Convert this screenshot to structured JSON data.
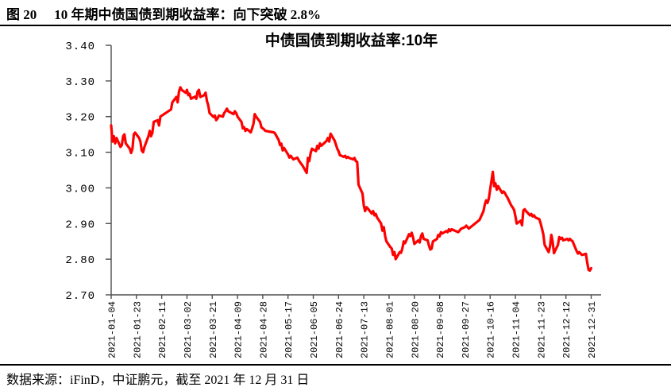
{
  "header": {
    "figure_label": "图 20",
    "figure_title": "10 年期中债国债到期收益率：向下突破 2.8%"
  },
  "footer": {
    "source_text": "数据来源：iFinD，中证鹏元，截至 2021 年 12 月 31 日"
  },
  "chart_data": {
    "type": "line",
    "title": "中债国债到期收益率:10年",
    "xlabel": "",
    "ylabel": "",
    "ylim": [
      2.7,
      3.4
    ],
    "y_tick_step": 0.1,
    "y_tick_labels": [
      "3.40",
      "3.30",
      "3.20",
      "3.10",
      "3.00",
      "2.90",
      "2.80",
      "2.70"
    ],
    "x_tick_labels": [
      "2021-01-04",
      "2021-01-23",
      "2021-02-11",
      "2021-03-02",
      "2021-03-21",
      "2021-04-09",
      "2021-04-28",
      "2021-05-17",
      "2021-06-05",
      "2021-06-24",
      "2021-07-13",
      "2021-08-01",
      "2021-08-20",
      "2021-09-08",
      "2021-09-27",
      "2021-10-16",
      "2021-11-04",
      "2021-11-23",
      "2021-12-12",
      "2021-12-31"
    ],
    "grid": false,
    "legend_position": "none",
    "line_color": "#FF0000",
    "axis_color": "#4d4d4d",
    "series": [
      {
        "name": "中债国债到期收益率:10年",
        "points": [
          [
            "2021-01-04",
            3.175
          ],
          [
            "2021-01-05",
            3.13
          ],
          [
            "2021-01-06",
            3.145
          ],
          [
            "2021-01-07",
            3.125
          ],
          [
            "2021-01-08",
            3.14
          ],
          [
            "2021-01-11",
            3.115
          ],
          [
            "2021-01-12",
            3.12
          ],
          [
            "2021-01-13",
            3.145
          ],
          [
            "2021-01-14",
            3.15
          ],
          [
            "2021-01-15",
            3.125
          ],
          [
            "2021-01-18",
            3.11
          ],
          [
            "2021-01-19",
            3.098
          ],
          [
            "2021-01-20",
            3.11
          ],
          [
            "2021-01-21",
            3.15
          ],
          [
            "2021-01-22",
            3.155
          ],
          [
            "2021-01-25",
            3.14
          ],
          [
            "2021-01-26",
            3.13
          ],
          [
            "2021-01-27",
            3.105
          ],
          [
            "2021-01-28",
            3.1
          ],
          [
            "2021-01-29",
            3.115
          ],
          [
            "2021-02-01",
            3.145
          ],
          [
            "2021-02-02",
            3.16
          ],
          [
            "2021-02-03",
            3.145
          ],
          [
            "2021-02-04",
            3.155
          ],
          [
            "2021-02-05",
            3.185
          ],
          [
            "2021-02-08",
            3.19
          ],
          [
            "2021-02-09",
            3.175
          ],
          [
            "2021-02-10",
            3.2
          ],
          [
            "2021-02-18",
            3.22
          ],
          [
            "2021-02-19",
            3.24
          ],
          [
            "2021-02-22",
            3.255
          ],
          [
            "2021-02-23",
            3.24
          ],
          [
            "2021-02-24",
            3.27
          ],
          [
            "2021-02-25",
            3.282
          ],
          [
            "2021-02-26",
            3.275
          ],
          [
            "2021-03-01",
            3.267
          ],
          [
            "2021-03-02",
            3.275
          ],
          [
            "2021-03-03",
            3.26
          ],
          [
            "2021-03-04",
            3.264
          ],
          [
            "2021-03-05",
            3.25
          ],
          [
            "2021-03-08",
            3.256
          ],
          [
            "2021-03-09",
            3.25
          ],
          [
            "2021-03-10",
            3.27
          ],
          [
            "2021-03-11",
            3.275
          ],
          [
            "2021-03-12",
            3.255
          ],
          [
            "2021-03-15",
            3.26
          ],
          [
            "2021-03-16",
            3.267
          ],
          [
            "2021-03-17",
            3.244
          ],
          [
            "2021-03-18",
            3.232
          ],
          [
            "2021-03-19",
            3.21
          ],
          [
            "2021-03-22",
            3.199
          ],
          [
            "2021-03-23",
            3.203
          ],
          [
            "2021-03-24",
            3.19
          ],
          [
            "2021-03-25",
            3.195
          ],
          [
            "2021-03-26",
            3.203
          ],
          [
            "2021-03-29",
            3.2
          ],
          [
            "2021-03-30",
            3.21
          ],
          [
            "2021-03-31",
            3.215
          ],
          [
            "2021-04-01",
            3.222
          ],
          [
            "2021-04-02",
            3.215
          ],
          [
            "2021-04-06",
            3.207
          ],
          [
            "2021-04-07",
            3.215
          ],
          [
            "2021-04-08",
            3.21
          ],
          [
            "2021-04-09",
            3.2
          ],
          [
            "2021-04-12",
            3.185
          ],
          [
            "2021-04-13",
            3.167
          ],
          [
            "2021-04-14",
            3.17
          ],
          [
            "2021-04-15",
            3.16
          ],
          [
            "2021-04-16",
            3.165
          ],
          [
            "2021-04-19",
            3.156
          ],
          [
            "2021-04-20",
            3.167
          ],
          [
            "2021-04-21",
            3.18
          ],
          [
            "2021-04-22",
            3.207
          ],
          [
            "2021-04-23",
            3.2
          ],
          [
            "2021-04-26",
            3.185
          ],
          [
            "2021-04-27",
            3.17
          ],
          [
            "2021-04-28",
            3.167
          ],
          [
            "2021-04-29",
            3.164
          ],
          [
            "2021-04-30",
            3.16
          ],
          [
            "2021-05-06",
            3.156
          ],
          [
            "2021-05-07",
            3.154
          ],
          [
            "2021-05-10",
            3.134
          ],
          [
            "2021-05-11",
            3.12
          ],
          [
            "2021-05-12",
            3.124
          ],
          [
            "2021-05-13",
            3.105
          ],
          [
            "2021-05-14",
            3.112
          ],
          [
            "2021-05-17",
            3.094
          ],
          [
            "2021-05-18",
            3.085
          ],
          [
            "2021-05-19",
            3.09
          ],
          [
            "2021-05-21",
            3.08
          ],
          [
            "2021-05-24",
            3.085
          ],
          [
            "2021-05-25",
            3.078
          ],
          [
            "2021-05-26",
            3.072
          ],
          [
            "2021-05-28",
            3.062
          ],
          [
            "2021-05-31",
            3.042
          ],
          [
            "2021-06-01",
            3.084
          ],
          [
            "2021-06-02",
            3.075
          ],
          [
            "2021-06-03",
            3.098
          ],
          [
            "2021-06-04",
            3.11
          ],
          [
            "2021-06-07",
            3.103
          ],
          [
            "2021-06-08",
            3.118
          ],
          [
            "2021-06-09",
            3.11
          ],
          [
            "2021-06-10",
            3.125
          ],
          [
            "2021-06-11",
            3.118
          ],
          [
            "2021-06-15",
            3.132
          ],
          [
            "2021-06-16",
            3.14
          ],
          [
            "2021-06-17",
            3.13
          ],
          [
            "2021-06-18",
            3.152
          ],
          [
            "2021-06-21",
            3.133
          ],
          [
            "2021-06-22",
            3.122
          ],
          [
            "2021-06-23",
            3.11
          ],
          [
            "2021-06-24",
            3.103
          ],
          [
            "2021-06-25",
            3.092
          ],
          [
            "2021-06-28",
            3.087
          ],
          [
            "2021-06-29",
            3.09
          ],
          [
            "2021-06-30",
            3.084
          ],
          [
            "2021-07-01",
            3.087
          ],
          [
            "2021-07-02",
            3.084
          ],
          [
            "2021-07-05",
            3.08
          ],
          [
            "2021-07-06",
            3.084
          ],
          [
            "2021-07-07",
            3.075
          ],
          [
            "2021-07-08",
            3.073
          ],
          [
            "2021-07-09",
            3.009
          ],
          [
            "2021-07-12",
            2.984
          ],
          [
            "2021-07-13",
            2.95
          ],
          [
            "2021-07-14",
            2.935
          ],
          [
            "2021-07-15",
            2.946
          ],
          [
            "2021-07-16",
            2.942
          ],
          [
            "2021-07-19",
            2.928
          ],
          [
            "2021-07-20",
            2.935
          ],
          [
            "2021-07-21",
            2.923
          ],
          [
            "2021-07-22",
            2.927
          ],
          [
            "2021-07-23",
            2.917
          ],
          [
            "2021-07-26",
            2.9
          ],
          [
            "2021-07-27",
            2.88
          ],
          [
            "2021-07-28",
            2.89
          ],
          [
            "2021-07-29",
            2.865
          ],
          [
            "2021-07-30",
            2.85
          ],
          [
            "2021-08-02",
            2.834
          ],
          [
            "2021-08-03",
            2.83
          ],
          [
            "2021-08-04",
            2.812
          ],
          [
            "2021-08-05",
            2.82
          ],
          [
            "2021-08-06",
            2.8
          ],
          [
            "2021-08-09",
            2.82
          ],
          [
            "2021-08-10",
            2.818
          ],
          [
            "2021-08-11",
            2.83
          ],
          [
            "2021-08-12",
            2.85
          ],
          [
            "2021-08-13",
            2.845
          ],
          [
            "2021-08-16",
            2.87
          ],
          [
            "2021-08-17",
            2.865
          ],
          [
            "2021-08-18",
            2.874
          ],
          [
            "2021-08-19",
            2.862
          ],
          [
            "2021-08-20",
            2.843
          ],
          [
            "2021-08-23",
            2.853
          ],
          [
            "2021-08-24",
            2.847
          ],
          [
            "2021-08-25",
            2.865
          ],
          [
            "2021-08-26",
            2.872
          ],
          [
            "2021-08-27",
            2.857
          ],
          [
            "2021-08-30",
            2.853
          ],
          [
            "2021-08-31",
            2.838
          ],
          [
            "2021-09-01",
            2.827
          ],
          [
            "2021-09-02",
            2.83
          ],
          [
            "2021-09-03",
            2.85
          ],
          [
            "2021-09-06",
            2.857
          ],
          [
            "2021-09-07",
            2.868
          ],
          [
            "2021-09-08",
            2.864
          ],
          [
            "2021-09-09",
            2.876
          ],
          [
            "2021-09-10",
            2.872
          ],
          [
            "2021-09-13",
            2.879
          ],
          [
            "2021-09-14",
            2.876
          ],
          [
            "2021-09-15",
            2.884
          ],
          [
            "2021-09-16",
            2.879
          ],
          [
            "2021-09-17",
            2.884
          ],
          [
            "2021-09-22",
            2.876
          ],
          [
            "2021-09-23",
            2.88
          ],
          [
            "2021-09-24",
            2.885
          ],
          [
            "2021-09-27",
            2.89
          ],
          [
            "2021-09-28",
            2.894
          ],
          [
            "2021-09-29",
            2.89
          ],
          [
            "2021-09-30",
            2.886
          ],
          [
            "2021-10-08",
            2.91
          ],
          [
            "2021-10-11",
            2.935
          ],
          [
            "2021-10-12",
            2.953
          ],
          [
            "2021-10-13",
            2.965
          ],
          [
            "2021-10-14",
            2.958
          ],
          [
            "2021-10-15",
            2.97
          ],
          [
            "2021-10-18",
            3.045
          ],
          [
            "2021-10-19",
            3.005
          ],
          [
            "2021-10-20",
            3.013
          ],
          [
            "2021-10-21",
            2.995
          ],
          [
            "2021-10-22",
            3.005
          ],
          [
            "2021-10-25",
            2.986
          ],
          [
            "2021-10-26",
            2.99
          ],
          [
            "2021-10-27",
            2.986
          ],
          [
            "2021-10-28",
            2.979
          ],
          [
            "2021-10-29",
            2.973
          ],
          [
            "2021-11-01",
            2.95
          ],
          [
            "2021-11-02",
            2.945
          ],
          [
            "2021-11-03",
            2.938
          ],
          [
            "2021-11-04",
            2.92
          ],
          [
            "2021-11-05",
            2.9
          ],
          [
            "2021-11-08",
            2.908
          ],
          [
            "2021-11-09",
            2.895
          ],
          [
            "2021-11-10",
            2.937
          ],
          [
            "2021-11-11",
            2.94
          ],
          [
            "2021-11-12",
            2.935
          ],
          [
            "2021-11-15",
            2.923
          ],
          [
            "2021-11-16",
            2.927
          ],
          [
            "2021-11-17",
            2.92
          ],
          [
            "2021-11-18",
            2.923
          ],
          [
            "2021-11-19",
            2.917
          ],
          [
            "2021-11-22",
            2.912
          ],
          [
            "2021-11-23",
            2.9
          ],
          [
            "2021-11-24",
            2.886
          ],
          [
            "2021-11-25",
            2.87
          ],
          [
            "2021-11-26",
            2.84
          ],
          [
            "2021-11-29",
            2.82
          ],
          [
            "2021-11-30",
            2.835
          ],
          [
            "2021-12-01",
            2.868
          ],
          [
            "2021-12-02",
            2.85
          ],
          [
            "2021-12-03",
            2.817
          ],
          [
            "2021-12-06",
            2.84
          ],
          [
            "2021-12-07",
            2.862
          ],
          [
            "2021-12-08",
            2.857
          ],
          [
            "2021-12-09",
            2.86
          ],
          [
            "2021-12-10",
            2.853
          ],
          [
            "2021-12-13",
            2.857
          ],
          [
            "2021-12-14",
            2.853
          ],
          [
            "2021-12-15",
            2.857
          ],
          [
            "2021-12-16",
            2.853
          ],
          [
            "2021-12-17",
            2.85
          ],
          [
            "2021-12-20",
            2.823
          ],
          [
            "2021-12-21",
            2.816
          ],
          [
            "2021-12-22",
            2.82
          ],
          [
            "2021-12-23",
            2.816
          ],
          [
            "2021-12-24",
            2.812
          ],
          [
            "2021-12-27",
            2.815
          ],
          [
            "2021-12-28",
            2.79
          ],
          [
            "2021-12-29",
            2.77
          ],
          [
            "2021-12-30",
            2.768
          ],
          [
            "2021-12-31",
            2.775
          ]
        ]
      }
    ]
  }
}
